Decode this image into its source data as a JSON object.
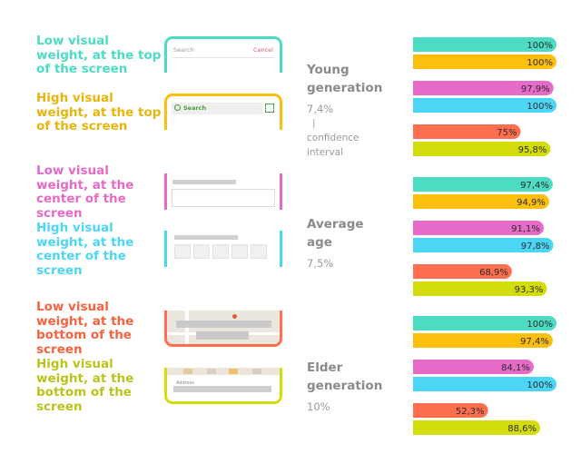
{
  "colors": {
    "teal": "#4cdcc4",
    "yellow": "#fdbf0e",
    "pink": "#e66ac8",
    "cyan": "#4cd6f6",
    "orange": "#ff6e4f",
    "lime": "#d4dd0c"
  },
  "conditions": [
    {
      "label": "Low visual weight, at the top of the screen",
      "color": "#4cdcc4"
    },
    {
      "label": "High visual weight, at the top of the screen",
      "color": "#e8b50c"
    },
    {
      "label": "Low visual weight, at the center of the screen",
      "color": "#e66ac8"
    },
    {
      "label": "High visual weight, at the center of the screen",
      "color": "#4cd6f6"
    },
    {
      "label": "Low visual weight, at the bottom of the screen",
      "color": "#f7633f"
    },
    {
      "label": "High visual weight, at the bottom of the screen",
      "color": "#b9c41a"
    }
  ],
  "mockups": {
    "search_placeholder": "Search",
    "cancel_label": "Cancel",
    "search_label": "Search",
    "address_label": "Address"
  },
  "groups": [
    {
      "name_line1": "Young",
      "name_line2": "generation",
      "pct": "7,4%",
      "ci_mark": "|",
      "ci_line1": "confidence",
      "ci_line2": "interval"
    },
    {
      "name_line1": "Average",
      "name_line2": "age",
      "pct": "7,5%"
    },
    {
      "name_line1": "Elder",
      "name_line2": "generation",
      "pct": "10%"
    }
  ],
  "chart_data": {
    "type": "bar",
    "orientation": "horizontal",
    "xlim": [
      0,
      100
    ],
    "series_colors": [
      "#4cdcc4",
      "#fdbf0e",
      "#e66ac8",
      "#4cd6f6",
      "#ff6e4f",
      "#d4dd0c"
    ],
    "groups": [
      {
        "values": [
          100,
          100,
          97.9,
          100,
          75,
          95.8
        ],
        "labels": [
          "100%",
          "100%",
          "97,9%",
          "100%",
          "75%",
          "95,8%"
        ]
      },
      {
        "values": [
          97.4,
          94.9,
          91.1,
          97.8,
          68.9,
          93.3
        ],
        "labels": [
          "97,4%",
          "94,9%",
          "91,1%",
          "97,8%",
          "68,9%",
          "93,3%"
        ]
      },
      {
        "values": [
          100,
          97.4,
          84.1,
          100,
          52.3,
          88.6
        ],
        "labels": [
          "100%",
          "97,4%",
          "84,1%",
          "100%",
          "52,3%",
          "88,6%"
        ]
      }
    ]
  }
}
